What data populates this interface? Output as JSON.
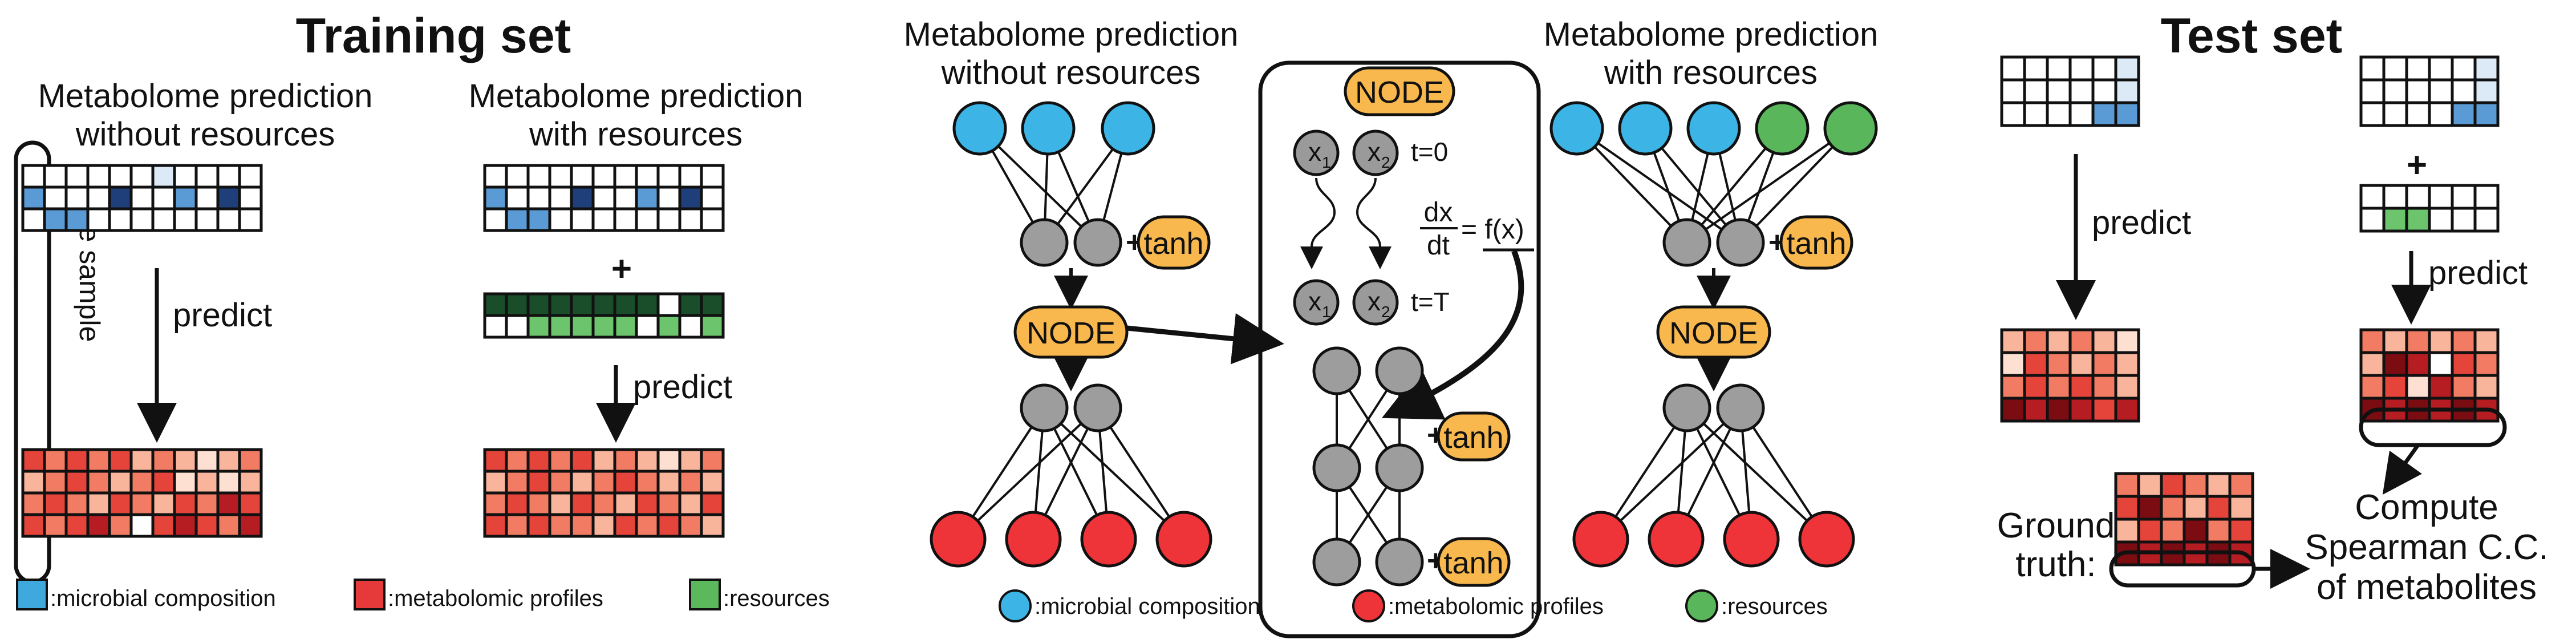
{
  "panels": {
    "training": {
      "title": "Training set",
      "left_heading": [
        "Metabolome prediction",
        "without resources"
      ],
      "right_heading": [
        "Metabolome prediction",
        "with resources"
      ],
      "one_sample_label": "one sample",
      "predict_label_left": "predict",
      "predict_label_right": "predict",
      "plus": "+"
    },
    "middle": {
      "left_heading": [
        "Metabolome prediction",
        "without resources"
      ],
      "right_heading": [
        "Metabolome prediction",
        "with resources"
      ],
      "tanh_label": "tanh",
      "node_label": "NODE",
      "node_box": {
        "title": "NODE",
        "x1": "x",
        "x2": "x",
        "sub1": "1",
        "sub2": "2",
        "t0": "t=0",
        "tT": "t=T",
        "dx": "dx",
        "dt": "dt",
        "eq": "= f(x)"
      }
    },
    "test": {
      "title": "Test set",
      "predict_label": "predict",
      "plus": "+",
      "ground_truth": [
        "Ground",
        "truth:"
      ],
      "compute": [
        "Compute",
        "Spearman C.C.",
        "of metabolites"
      ]
    }
  },
  "legends": {
    "training": [
      {
        "label": ":microbial composition",
        "color": "#3fa9dd"
      },
      {
        "label": ":metabolomic profiles",
        "color": "#e63a3a"
      },
      {
        "label": ":resources",
        "color": "#5cb85c"
      }
    ],
    "middle": [
      {
        "label": ":microbial composition",
        "color": "#3cb4e6"
      },
      {
        "label": ":metabolomic profiles",
        "color": "#ee3339"
      },
      {
        "label": ":resources",
        "color": "#59b65a"
      }
    ]
  },
  "colors": {
    "node_fill": "#f8b84e",
    "neuron_grey": "#9d9d9d",
    "microbe_blue": "#3cb4e6",
    "metabolite_red": "#ee3339",
    "resource_green": "#59b65a",
    "grid_blue_light": "#dceaf7",
    "grid_blue_mid": "#5a9bd5",
    "grid_blue_dark": "#1f3f7a",
    "grid_green_dark": "#1a4d2a",
    "grid_green_light": "#6cc46c"
  }
}
